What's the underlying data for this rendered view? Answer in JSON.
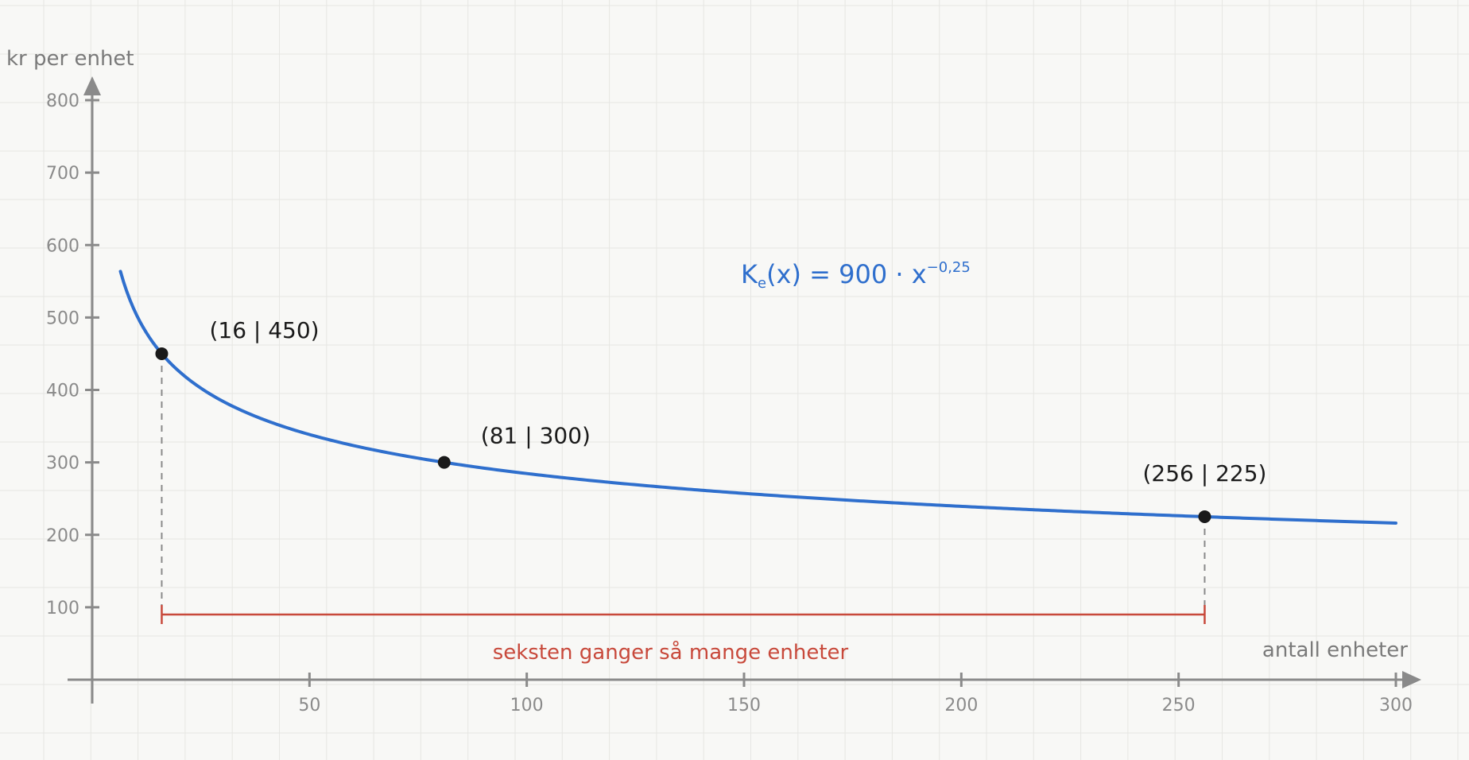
{
  "chart_data": {
    "type": "line",
    "xlabel": "antall enheter",
    "ylabel": "kr per enhet",
    "xlim": [
      0,
      300
    ],
    "ylim": [
      0,
      800
    ],
    "x_ticks": [
      50,
      100,
      150,
      200,
      250,
      300
    ],
    "y_ticks": [
      100,
      200,
      300,
      400,
      500,
      600,
      700,
      800
    ],
    "grid": true,
    "series": [
      {
        "function": {
          "coefficient": 900,
          "exponent": -0.25,
          "x_start": 6.5,
          "x_end": 300
        },
        "color": "#2f6fcd"
      }
    ],
    "formula": {
      "lhs": "K",
      "sub": "e",
      "mid": "(x) = 900 · x",
      "sup": "−0,25"
    },
    "points": [
      {
        "x": 16,
        "y": 450,
        "label": "(16 | 450)"
      },
      {
        "x": 81,
        "y": 300,
        "label": "(81 | 300)"
      },
      {
        "x": 256,
        "y": 225,
        "label": "(256 | 225)"
      }
    ],
    "bracket": {
      "x_from": 16,
      "x_to": 256,
      "y_level": 90,
      "label": "seksten ganger så mange enheter",
      "color": "#c8493b"
    }
  }
}
